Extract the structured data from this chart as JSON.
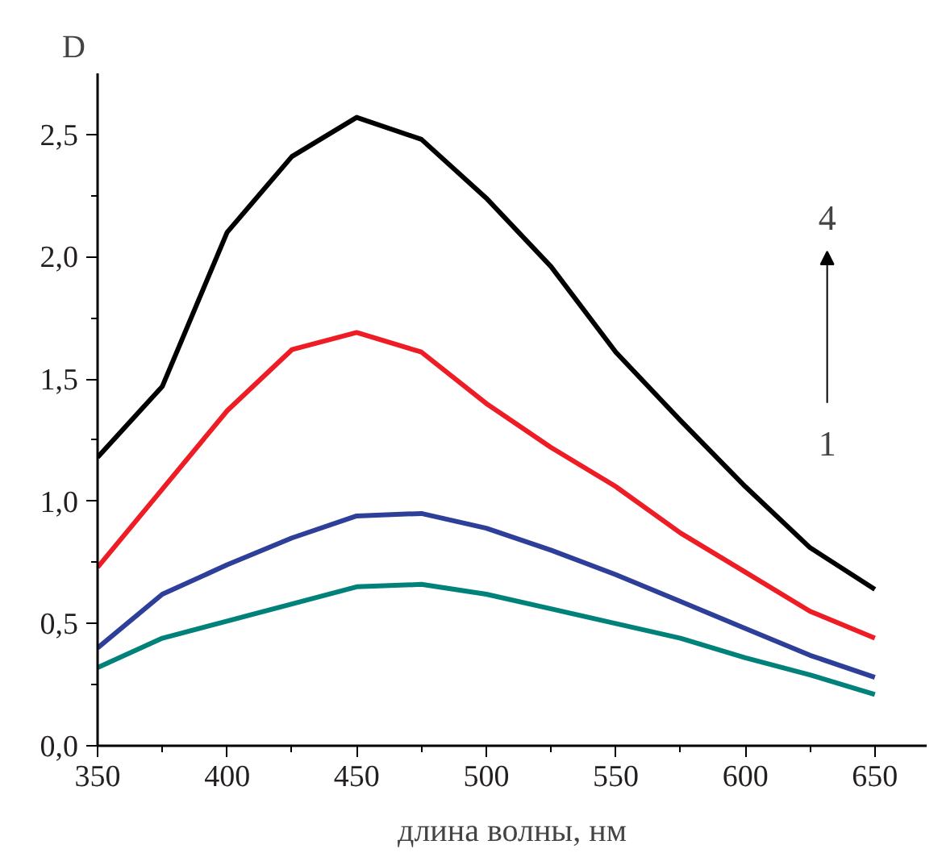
{
  "chart_data": {
    "type": "line",
    "xlabel": "длина волны, нм",
    "ylabel": "D",
    "x": [
      350,
      375,
      400,
      425,
      450,
      475,
      500,
      525,
      550,
      575,
      600,
      625,
      650
    ],
    "series": [
      {
        "color": "#000000",
        "values": [
          1.18,
          1.47,
          2.1,
          2.41,
          2.57,
          2.48,
          2.24,
          1.96,
          1.61,
          1.33,
          1.06,
          0.81,
          0.64
        ]
      },
      {
        "color": "#ee1c25",
        "values": [
          0.73,
          1.05,
          1.37,
          1.62,
          1.69,
          1.61,
          1.4,
          1.22,
          1.06,
          0.87,
          0.71,
          0.55,
          0.44
        ]
      },
      {
        "color": "#2e3f9a",
        "values": [
          0.4,
          0.62,
          0.74,
          0.85,
          0.94,
          0.95,
          0.89,
          0.8,
          0.7,
          0.59,
          0.48,
          0.37,
          0.28
        ]
      },
      {
        "color": "#00827a",
        "values": [
          0.32,
          0.44,
          0.51,
          0.58,
          0.65,
          0.66,
          0.62,
          0.56,
          0.5,
          0.44,
          0.36,
          0.29,
          0.21
        ]
      }
    ],
    "annotations": [
      "4",
      "1"
    ],
    "xlim": [
      350,
      670
    ],
    "ylim": [
      0,
      2.75
    ],
    "xticks": [
      350,
      400,
      450,
      500,
      550,
      600,
      650
    ],
    "yticks": [
      {
        "value": 0,
        "label": "0,0"
      },
      {
        "value": 0.5,
        "label": "0,5"
      },
      {
        "value": 1,
        "label": "1,0"
      },
      {
        "value": 1.5,
        "label": "1,5"
      },
      {
        "value": 2,
        "label": "2,0"
      },
      {
        "value": 2.5,
        "label": "2,5"
      }
    ],
    "grid": false
  }
}
